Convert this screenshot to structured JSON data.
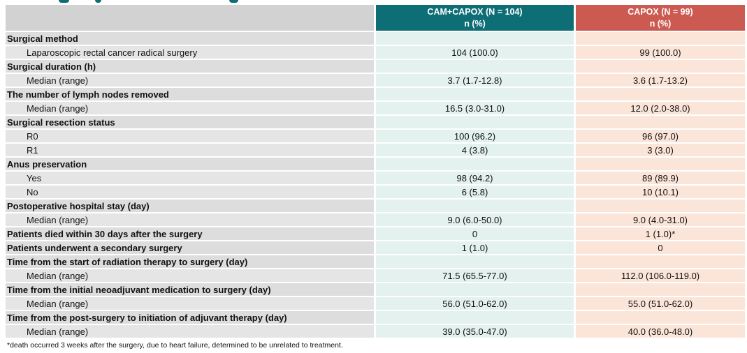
{
  "table": {
    "header": {
      "group1_line1": "CAM+CAPOX (N = 104)",
      "group1_line2": "n (%)",
      "group2_line1": "CAPOX (N = 99)",
      "group2_line2": "n (%)"
    },
    "rows": [
      {
        "type": "category",
        "label": "Surgical method",
        "v1": "",
        "v2": ""
      },
      {
        "type": "sub",
        "label": "Laparoscopic rectal cancer radical surgery",
        "v1": "104 (100.0)",
        "v2": "99 (100.0)"
      },
      {
        "type": "category",
        "label": "Surgical duration (h)",
        "v1": "",
        "v2": ""
      },
      {
        "type": "sub",
        "label": "Median (range)",
        "v1": "3.7 (1.7-12.8)",
        "v2": "3.6 (1.7-13.2)"
      },
      {
        "type": "category",
        "label": "The number of lymph nodes removed",
        "v1": "",
        "v2": ""
      },
      {
        "type": "sub",
        "label": "Median (range)",
        "v1": "16.5 (3.0-31.0)",
        "v2": "12.0 (2.0-38.0)"
      },
      {
        "type": "category",
        "label": "Surgical resection status",
        "v1": "",
        "v2": ""
      },
      {
        "type": "sub",
        "label": "R0",
        "v1": "100 (96.2)",
        "v2": "96 (97.0)"
      },
      {
        "type": "sub",
        "label": "R1",
        "v1": "4 (3.8)",
        "v2": "3 (3.0)"
      },
      {
        "type": "category",
        "label": "Anus preservation",
        "v1": "",
        "v2": ""
      },
      {
        "type": "sub",
        "label": "Yes",
        "v1": "98 (94.2)",
        "v2": "89 (89.9)"
      },
      {
        "type": "sub",
        "label": "No",
        "v1": "6 (5.8)",
        "v2": "10 (10.1)"
      },
      {
        "type": "category",
        "label": "Postoperative hospital stay (day)",
        "v1": "",
        "v2": ""
      },
      {
        "type": "sub",
        "label": "Median (range)",
        "v1": "9.0 (6.0-50.0)",
        "v2": "9.0 (4.0-31.0)"
      },
      {
        "type": "categorydata",
        "label": "Patients died within 30 days after the surgery",
        "v1": "0",
        "v2": "1 (1.0)*"
      },
      {
        "type": "categorydata",
        "label": "Patients underwent a secondary surgery",
        "v1": "1 (1.0)",
        "v2": "0"
      },
      {
        "type": "category",
        "label": "Time from the start of radiation therapy to surgery (day)",
        "v1": "",
        "v2": ""
      },
      {
        "type": "sub",
        "label": "Median (range)",
        "v1": "71.5 (65.5-77.0)",
        "v2": "112.0 (106.0-119.0)"
      },
      {
        "type": "category",
        "label": "Time from the initial neoadjuvant medication to surgery (day)",
        "v1": "",
        "v2": ""
      },
      {
        "type": "sub",
        "label": "Median (range)",
        "v1": "56.0 (51.0-62.0)",
        "v2": "55.0 (51.0-62.0)"
      },
      {
        "type": "category",
        "label": "Time from the post-surgery to initiation of adjuvant therapy (day)",
        "v1": "",
        "v2": ""
      },
      {
        "type": "sub",
        "label": "Median (range)",
        "v1": "39.0 (35.0-47.0)",
        "v2": "40.0 (36.0-48.0)"
      }
    ]
  },
  "footnote": "*death occurred 3 weeks after the surgery, due to heart failure, determined to be unrelated to treatment.",
  "colors": {
    "group1_header": "#0d6e75",
    "group2_header": "#cd5a50",
    "group1_cell": "#e3f1ef",
    "group2_cell": "#fbe5d9",
    "blank_header": "#d2d2d2",
    "category_label_cell": "#dddddd",
    "sub_label_cell": "#e5e5e5"
  }
}
